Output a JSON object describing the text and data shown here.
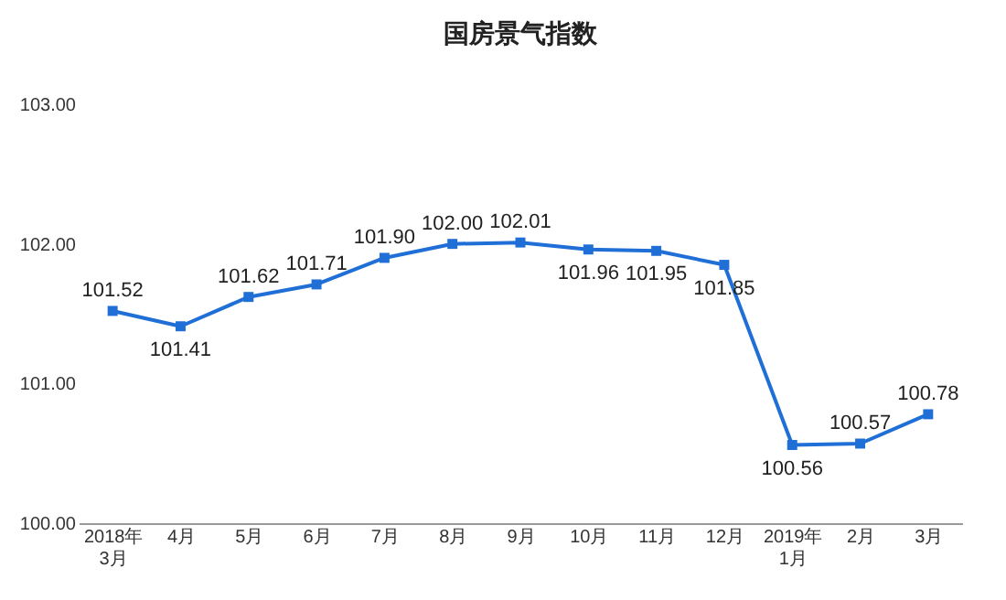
{
  "chart_data": {
    "type": "line",
    "title": "国房景气指数",
    "categories": [
      "2018年\n3月",
      "4月",
      "5月",
      "6月",
      "7月",
      "8月",
      "9月",
      "10月",
      "11月",
      "12月",
      "2019年\n1月",
      "2月",
      "3月"
    ],
    "series": [
      {
        "color": "#1f6fd6",
        "values": [
          101.52,
          101.41,
          101.62,
          101.71,
          101.9,
          102.0,
          102.01,
          101.96,
          101.95,
          101.85,
          100.56,
          100.57,
          100.78
        ],
        "value_labels": [
          "101.52",
          "101.41",
          "101.62",
          "101.71",
          "101.90",
          "102.00",
          "102.01",
          "101.96",
          "101.95",
          "101.85",
          "100.56",
          "100.57",
          "100.78"
        ]
      }
    ],
    "ylim": [
      100,
      103
    ],
    "yticks": [
      {
        "value": 100,
        "label": "100.00"
      },
      {
        "value": 101,
        "label": "101.00"
      },
      {
        "value": 102,
        "label": "102.00"
      },
      {
        "value": 103,
        "label": "103.00"
      }
    ],
    "grid": false,
    "marker": "square",
    "line_style": "solid",
    "legend": false
  }
}
